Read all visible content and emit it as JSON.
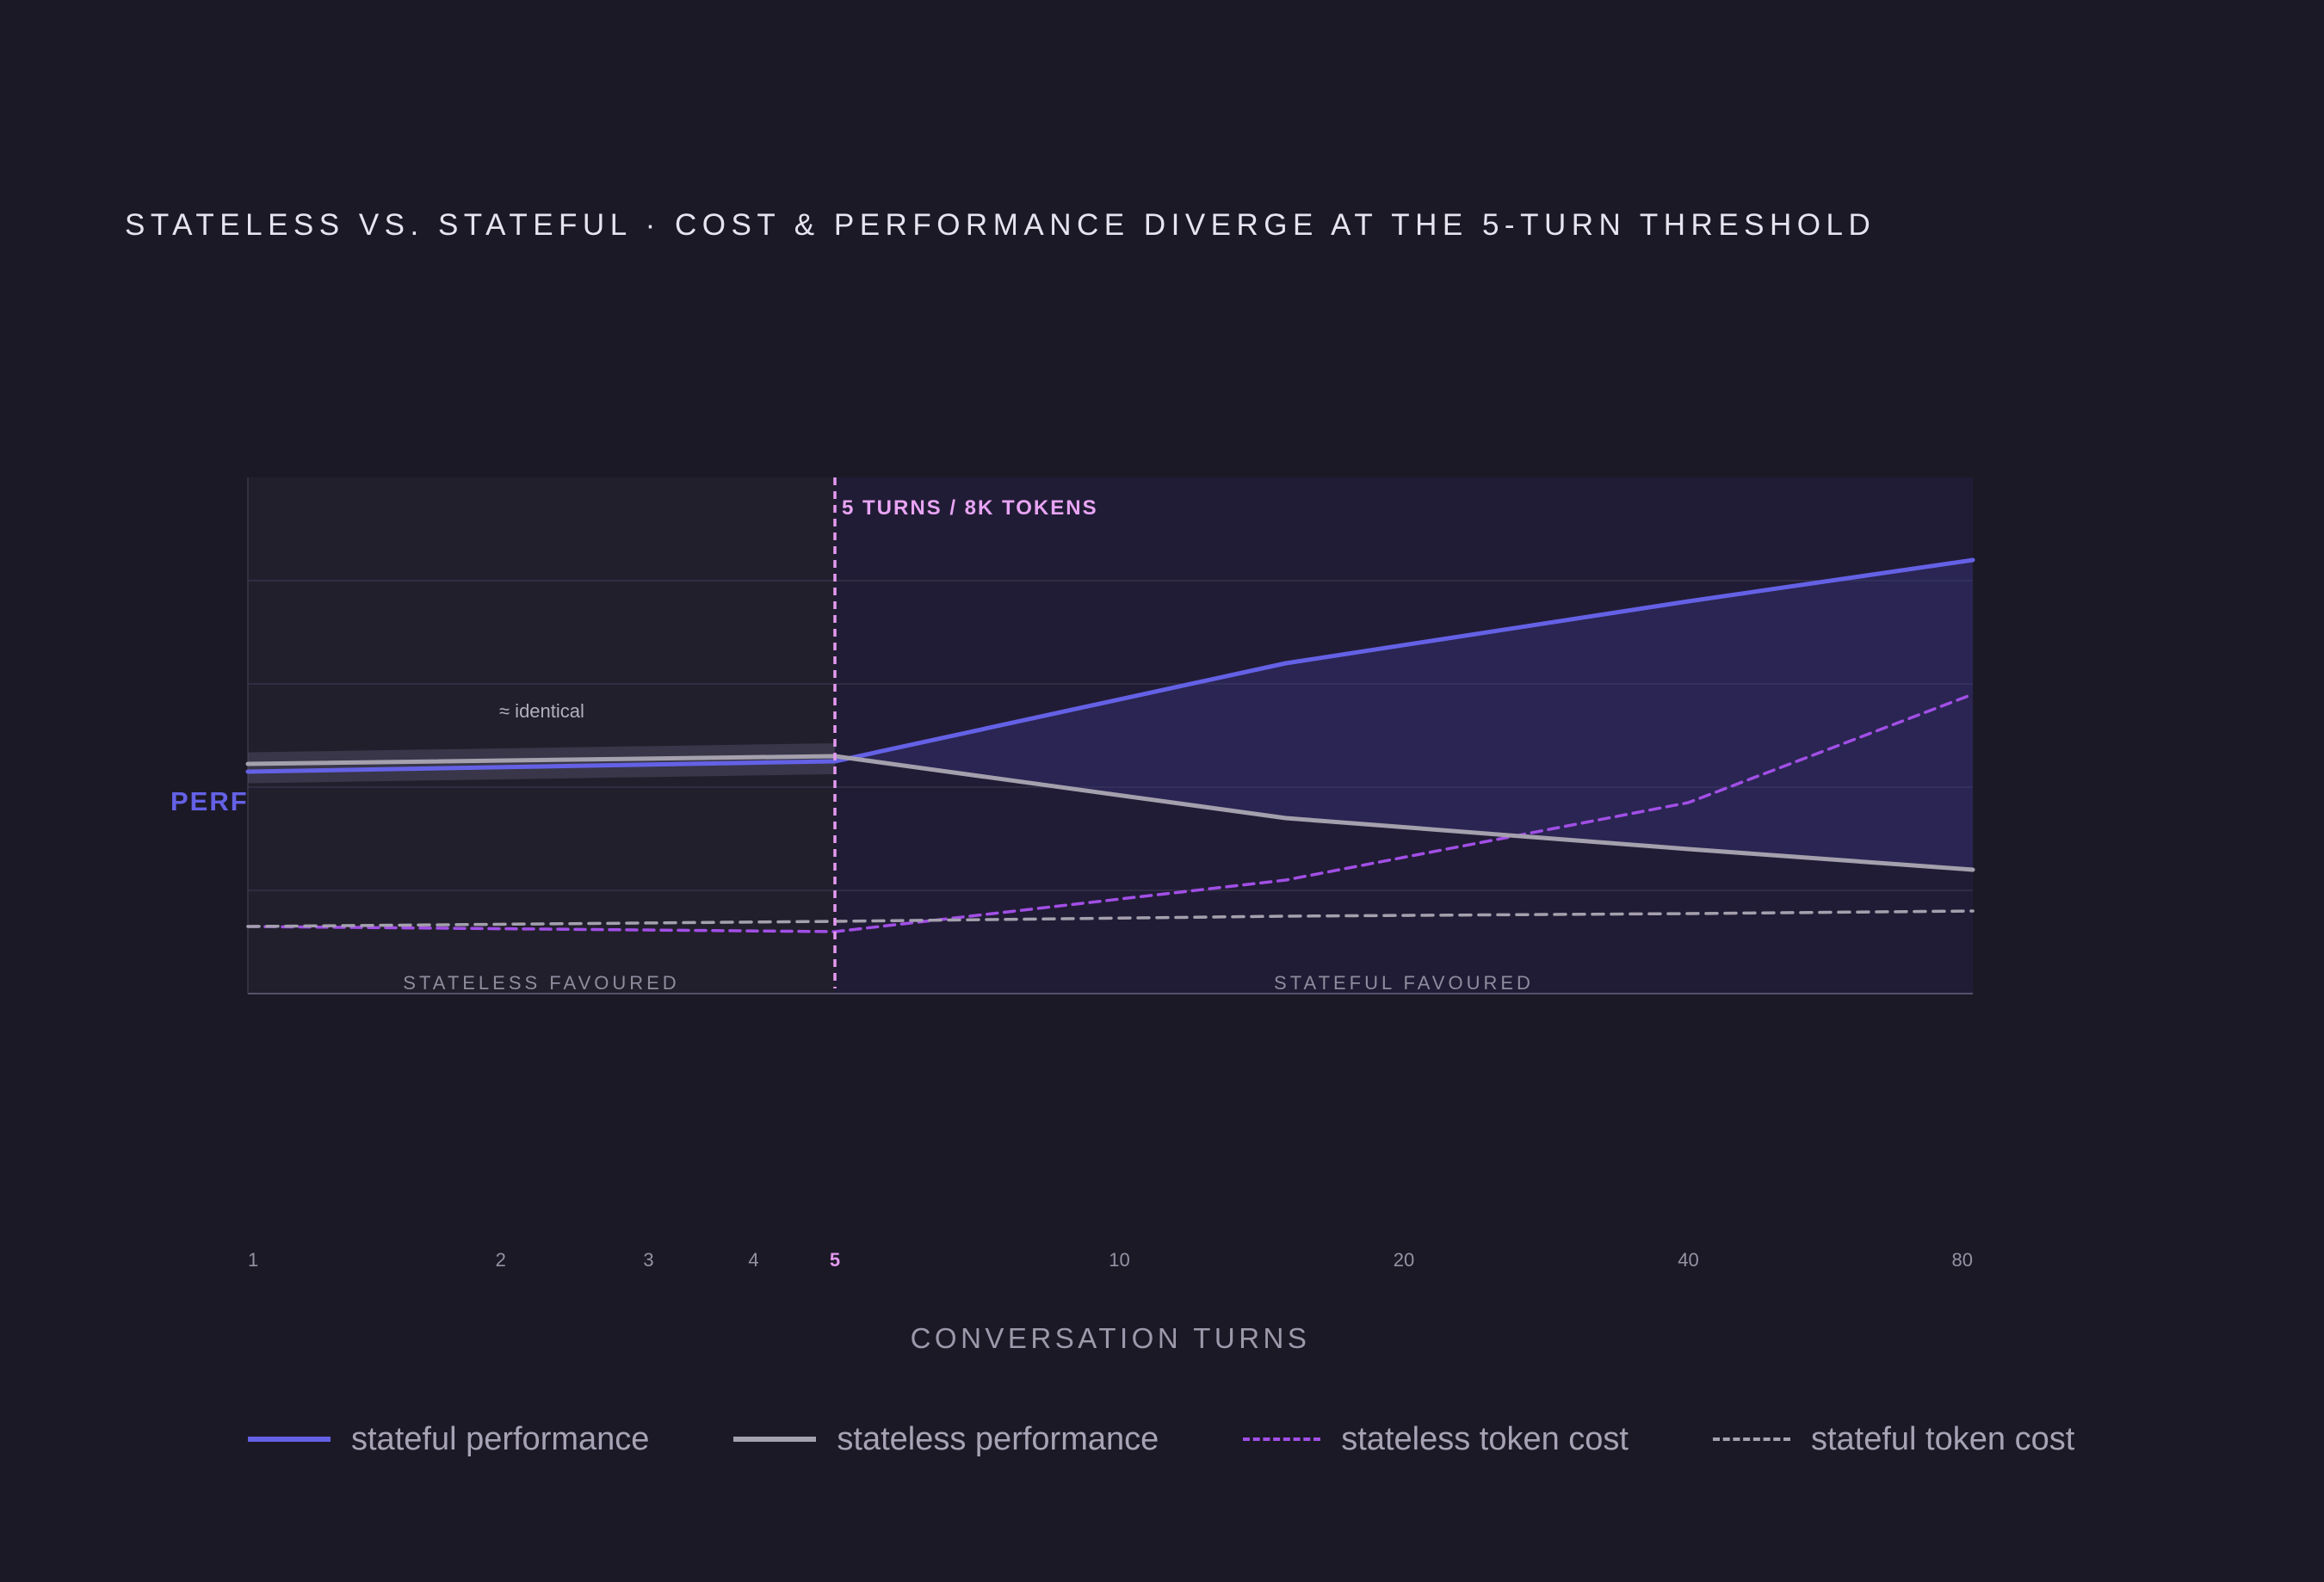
{
  "chart_data": {
    "type": "line",
    "title": "STATELESS VS. STATEFUL · COST & PERFORMANCE DIVERGE AT THE 5-TURN THRESHOLD",
    "xlabel": "CONVERSATION TURNS",
    "ylabel": "PERF",
    "x_scale": "log",
    "x": [
      1,
      2,
      3,
      4,
      5,
      10,
      20,
      40,
      80
    ],
    "x_ticks": [
      "1",
      "2",
      "3",
      "4",
      "5",
      "10",
      "20",
      "40",
      "80"
    ],
    "highlight_tick": "5",
    "ylim": [
      0,
      100
    ],
    "grid": true,
    "threshold": {
      "x": 5,
      "label": "5 TURNS / 8K TOKENS",
      "color": "#e49af0"
    },
    "region_labels": {
      "left": "STATELESS FAVOURED",
      "right": "STATEFUL FAVOURED"
    },
    "annotation": "≈ identical",
    "series": [
      {
        "name": "stateful performance",
        "kind": "performance",
        "color": "#6461e6",
        "dash": "solid",
        "points": [
          [
            1,
            43
          ],
          [
            5,
            45
          ],
          [
            15,
            64
          ],
          [
            40,
            76
          ],
          [
            80,
            84
          ]
        ]
      },
      {
        "name": "stateless performance",
        "kind": "performance",
        "color": "#a4a0ad",
        "dash": "solid",
        "points": [
          [
            1,
            44.5
          ],
          [
            5,
            46
          ],
          [
            15,
            34
          ],
          [
            40,
            28
          ],
          [
            80,
            24
          ]
        ]
      },
      {
        "name": "stateless token cost",
        "kind": "cost",
        "color": "#a14fe6",
        "dash": "dashed",
        "points": [
          [
            1,
            13
          ],
          [
            5,
            12
          ],
          [
            15,
            22
          ],
          [
            40,
            37
          ],
          [
            80,
            58
          ]
        ]
      },
      {
        "name": "stateful token cost",
        "kind": "cost",
        "color": "#a4a0ad",
        "dash": "dashed",
        "points": [
          [
            1,
            13
          ],
          [
            5,
            14
          ],
          [
            15,
            15
          ],
          [
            40,
            15.5
          ],
          [
            80,
            16
          ]
        ]
      }
    ]
  }
}
